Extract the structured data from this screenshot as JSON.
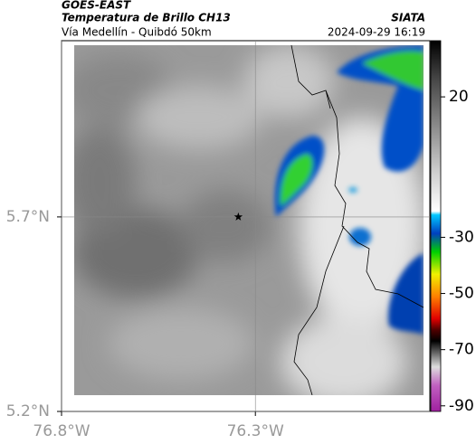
{
  "header": {
    "title": "GOES-EAST",
    "subtitle": "Temperatura de Brillo CH13",
    "source": "SIATA",
    "route": "Vía Medellín - Quibdó 50km",
    "timestamp": "2024-09-29 16:19"
  },
  "map": {
    "lonlim": [
      -76.8,
      -75.85
    ],
    "latlim": [
      5.2,
      6.153
    ],
    "lonticks": [
      {
        "value": -76.8,
        "label": "76.8°W"
      },
      {
        "value": -76.3,
        "label": "76.3°W"
      }
    ],
    "latticks": [
      {
        "value": 5.2,
        "label": "5.2°N"
      },
      {
        "value": 5.7,
        "label": "5.7°N"
      }
    ],
    "station": {
      "lon": -76.344,
      "lat": 5.7
    }
  },
  "colorbar": {
    "range": [
      40,
      -92
    ],
    "ticks": [
      20,
      -30,
      -50,
      -70,
      -90
    ]
  }
}
